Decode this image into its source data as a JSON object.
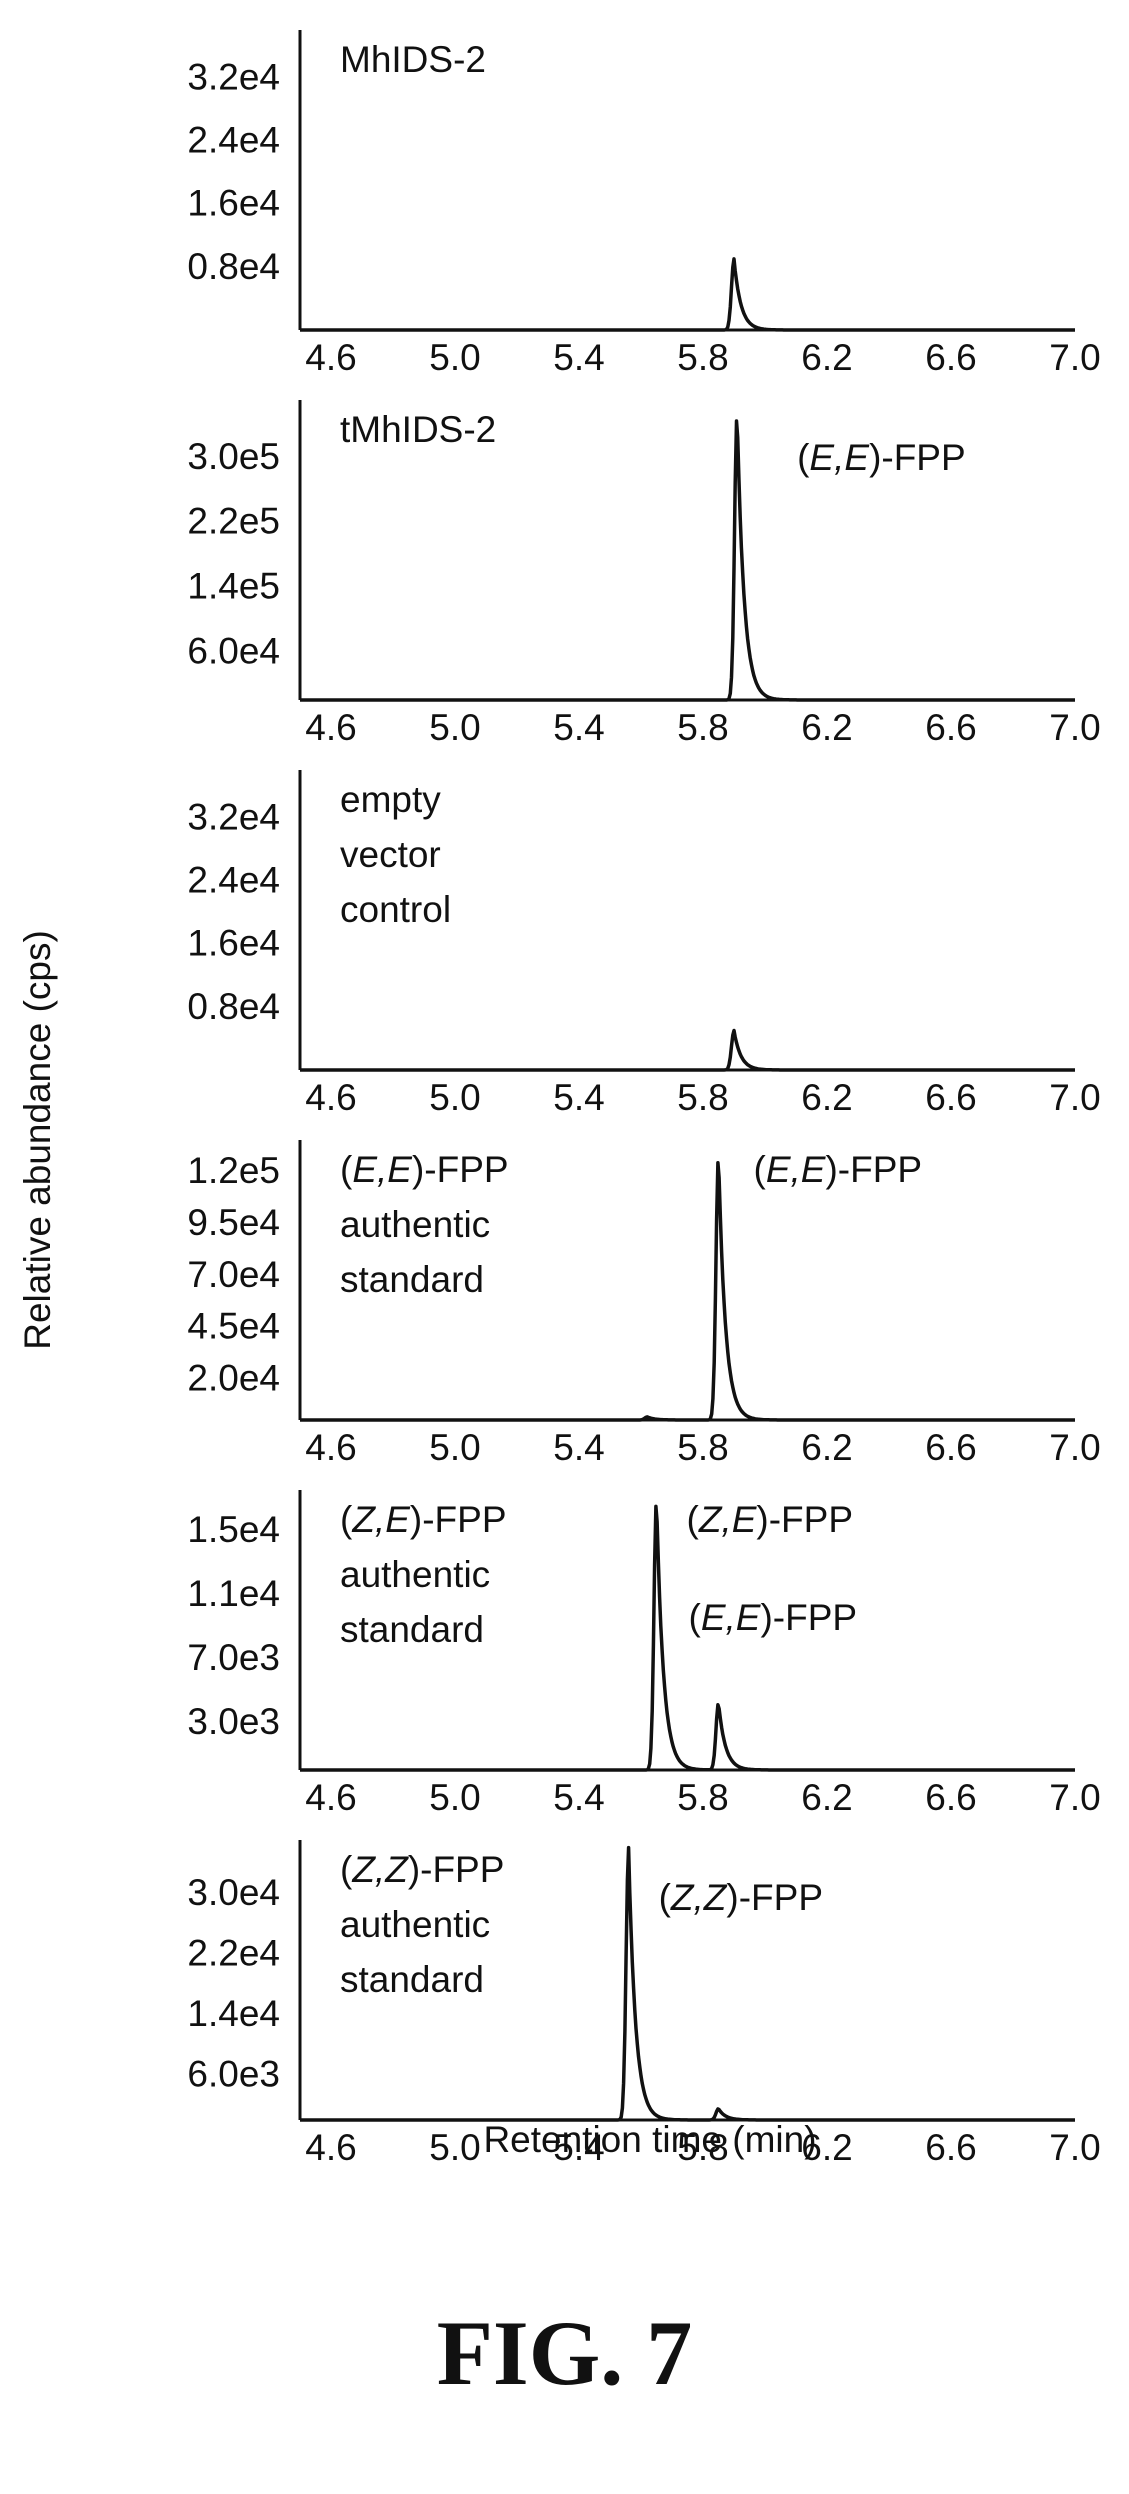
{
  "figure": {
    "caption": "FIG. 7"
  },
  "chart_data": {
    "type": "line",
    "xlabel": "Retention time (min)",
    "ylabel": "Relative abundance (cps)",
    "xlim": [
      4.5,
      7.0
    ],
    "x_ticks": [
      "4.6",
      "5.0",
      "5.4",
      "5.8",
      "6.2",
      "6.6",
      "7.0"
    ],
    "grid": false,
    "panels": [
      {
        "name": "MhIDS-2",
        "labels": [
          "MhIDS-2"
        ],
        "peak_labels": [],
        "y_ticks": [
          "3.2e4",
          "2.4e4",
          "1.6e4",
          "0.8e4"
        ],
        "y_tick_values": [
          32000,
          24000,
          16000,
          8000
        ],
        "ylim": [
          0,
          38000
        ],
        "peaks": [
          {
            "x": 5.9,
            "height": 9000
          }
        ]
      },
      {
        "name": "tMhIDS-2",
        "labels": [
          "tMhIDS-2"
        ],
        "peak_labels": [
          "(E,E)-FPP"
        ],
        "y_ticks": [
          "3.0e5",
          "2.2e5",
          "1.4e5",
          "6.0e4"
        ],
        "y_tick_values": [
          300000,
          220000,
          140000,
          60000
        ],
        "ylim": [
          0,
          370000
        ],
        "peaks": [
          {
            "x": 5.91,
            "height": 355000
          }
        ]
      },
      {
        "name": "empty vector control",
        "labels": [
          "empty",
          "vector",
          "control"
        ],
        "peak_labels": [],
        "y_ticks": [
          "3.2e4",
          "2.4e4",
          "1.6e4",
          "0.8e4"
        ],
        "y_tick_values": [
          32000,
          24000,
          16000,
          8000
        ],
        "ylim": [
          0,
          38000
        ],
        "peaks": [
          {
            "x": 5.9,
            "height": 5000
          }
        ]
      },
      {
        "name": "(E,E)-FPP authentic standard",
        "labels": [
          "(E,E)-FPP",
          "authentic",
          "standard"
        ],
        "peak_labels": [
          "(E,E)-FPP"
        ],
        "y_ticks": [
          "1.2e5",
          "9.5e4",
          "7.0e4",
          "4.5e4",
          "2.0e4"
        ],
        "y_tick_values": [
          120000,
          95000,
          70000,
          45000,
          20000
        ],
        "ylim": [
          0,
          135000
        ],
        "peaks": [
          {
            "x": 5.85,
            "height": 128000
          },
          {
            "x": 5.62,
            "height": 1500
          }
        ]
      },
      {
        "name": "(Z,E)-FPP authentic standard",
        "labels": [
          "(Z,E)-FPP",
          "authentic",
          "standard"
        ],
        "peak_labels": [
          "(Z,E)-FPP",
          "(E,E)-FPP"
        ],
        "y_ticks": [
          "1.5e4",
          "1.1e4",
          "7.0e3",
          "3.0e3"
        ],
        "y_tick_values": [
          15000,
          11000,
          7000,
          3000
        ],
        "ylim": [
          0,
          17500
        ],
        "peaks": [
          {
            "x": 5.65,
            "height": 17000
          },
          {
            "x": 5.85,
            "height": 4200
          }
        ]
      },
      {
        "name": "(Z,Z)-FPP authentic standard",
        "labels": [
          "(Z,Z)-FPP",
          "authentic",
          "standard"
        ],
        "peak_labels": [
          "(Z,Z)-FPP"
        ],
        "y_ticks": [
          "3.0e4",
          "2.2e4",
          "1.4e4",
          "6.0e3"
        ],
        "y_tick_values": [
          30000,
          22000,
          14000,
          6000
        ],
        "ylim": [
          0,
          37000
        ],
        "peaks": [
          {
            "x": 5.56,
            "height": 36000
          },
          {
            "x": 5.85,
            "height": 1500
          }
        ]
      }
    ]
  }
}
